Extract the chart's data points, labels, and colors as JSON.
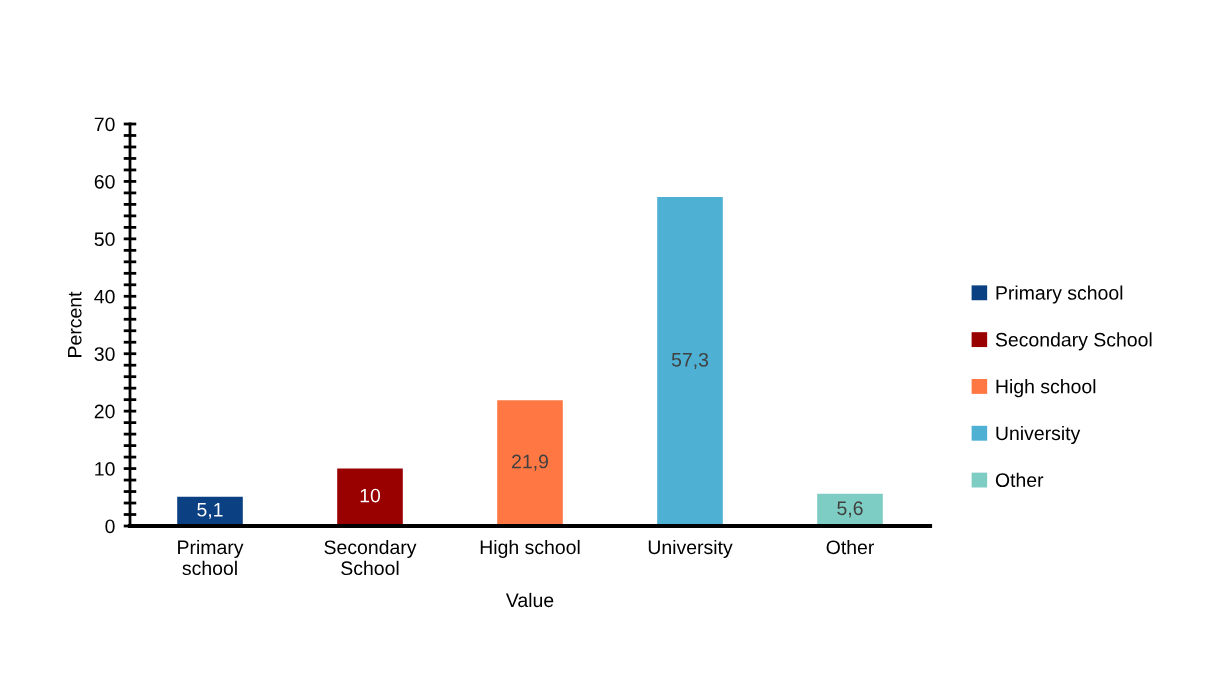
{
  "chart_data": {
    "type": "bar",
    "xlabel": "Value",
    "ylabel": "Percent",
    "stacked": true,
    "categories": [
      "Primary school",
      "Secondary School",
      "High school",
      "University",
      "Other"
    ],
    "series": [
      {
        "name": "Primary school",
        "color": "#0b4082",
        "values": [
          5.1,
          null,
          null,
          null,
          null
        ],
        "value_labels": [
          "5,1",
          null,
          null,
          null,
          null
        ]
      },
      {
        "name": "Secondary School",
        "color": "#990000",
        "values": [
          null,
          10,
          null,
          null,
          null
        ],
        "value_labels": [
          null,
          "10",
          null,
          null,
          null
        ]
      },
      {
        "name": "High school",
        "color": "#ff7843",
        "values": [
          null,
          null,
          21.9,
          null,
          null
        ],
        "value_labels": [
          null,
          null,
          "21,9",
          null,
          null
        ]
      },
      {
        "name": "University",
        "color": "#4eb1d4",
        "values": [
          null,
          null,
          null,
          57.3,
          null
        ],
        "value_labels": [
          null,
          null,
          null,
          "57,3",
          null
        ]
      },
      {
        "name": "Other",
        "color": "#7ecdc4",
        "values": [
          null,
          null,
          null,
          null,
          5.6
        ],
        "value_labels": [
          null,
          null,
          null,
          null,
          "5,6"
        ]
      }
    ],
    "ylim": [
      0,
      70
    ],
    "yticks": [
      0,
      {
        "value": 2,
        "label": null
      },
      {
        "value": 4,
        "label": null
      },
      {
        "value": 6,
        "label": null
      },
      {
        "value": 8,
        "label": null
      },
      10,
      {
        "value": 12,
        "label": null
      },
      {
        "value": 14,
        "label": null
      },
      {
        "value": 16,
        "label": null
      },
      {
        "value": 18,
        "label": null
      },
      20,
      {
        "value": 22,
        "label": null
      },
      {
        "value": 24,
        "label": null
      },
      {
        "value": 26,
        "label": null
      },
      {
        "value": 28,
        "label": null
      },
      30,
      {
        "value": 32,
        "label": null
      },
      {
        "value": 34,
        "label": null
      },
      {
        "value": 36,
        "label": null
      },
      {
        "value": 38,
        "label": null
      },
      40,
      {
        "value": 42,
        "label": null
      },
      {
        "value": 44,
        "label": null
      },
      {
        "value": 46,
        "label": null
      },
      {
        "value": 48,
        "label": null
      },
      50,
      {
        "value": 52,
        "label": null
      },
      {
        "value": 54,
        "label": null
      },
      {
        "value": 56,
        "label": null
      },
      {
        "value": 58,
        "label": null
      },
      60,
      {
        "value": 62,
        "label": null
      },
      {
        "value": 64,
        "label": null
      },
      {
        "value": 66,
        "label": null
      },
      {
        "value": 68,
        "label": null
      },
      70
    ],
    "legend": "right"
  }
}
